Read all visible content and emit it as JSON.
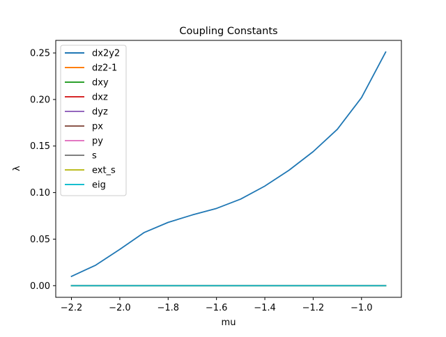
{
  "chart_data": {
    "type": "line",
    "title": "Coupling Constants",
    "xlabel": "mu",
    "ylabel": "λ",
    "xlim": [
      -2.265,
      -0.835
    ],
    "ylim": [
      -0.0125,
      0.2635
    ],
    "xticks": [
      -2.2,
      -2.0,
      -1.8,
      -1.6,
      -1.4,
      -1.2,
      -1.0
    ],
    "xtick_labels": [
      "−2.2",
      "−2.0",
      "−1.8",
      "−1.6",
      "−1.4",
      "−1.2",
      "−1.0"
    ],
    "yticks": [
      0.0,
      0.05,
      0.1,
      0.15,
      0.2,
      0.25
    ],
    "ytick_labels": [
      "0.00",
      "0.05",
      "0.10",
      "0.15",
      "0.20",
      "0.25"
    ],
    "grid": false,
    "legend_position": "upper-left",
    "x": [
      -2.2,
      -2.1,
      -2.0,
      -1.9,
      -1.8,
      -1.7,
      -1.6,
      -1.5,
      -1.4,
      -1.3,
      -1.2,
      -1.1,
      -1.0,
      -0.9
    ],
    "series": [
      {
        "name": "dx2y2",
        "color": "#1f77b4",
        "values": [
          0.01,
          0.022,
          0.039,
          0.057,
          0.068,
          0.076,
          0.083,
          0.093,
          0.107,
          0.124,
          0.144,
          0.168,
          0.202,
          0.251
        ]
      },
      {
        "name": "dz2-1",
        "color": "#ff7f0e",
        "values": [
          0,
          0,
          0,
          0,
          0,
          0,
          0,
          0,
          0,
          0,
          0,
          0,
          0,
          0
        ]
      },
      {
        "name": "dxy",
        "color": "#2ca02c",
        "values": [
          0,
          0,
          0,
          0,
          0,
          0,
          0,
          0,
          0,
          0,
          0,
          0,
          0,
          0
        ]
      },
      {
        "name": "dxz",
        "color": "#d62728",
        "values": [
          0,
          0,
          0,
          0,
          0,
          0,
          0,
          0,
          0,
          0,
          0,
          0,
          0,
          0
        ]
      },
      {
        "name": "dyz",
        "color": "#9467bd",
        "values": [
          0,
          0,
          0,
          0,
          0,
          0,
          0,
          0,
          0,
          0,
          0,
          0,
          0,
          0
        ]
      },
      {
        "name": "px",
        "color": "#8c564b",
        "values": [
          0,
          0,
          0,
          0,
          0,
          0,
          0,
          0,
          0,
          0,
          0,
          0,
          0,
          0
        ]
      },
      {
        "name": "py",
        "color": "#e377c2",
        "values": [
          0,
          0,
          0,
          0,
          0,
          0,
          0,
          0,
          0,
          0,
          0,
          0,
          0,
          0
        ]
      },
      {
        "name": "s",
        "color": "#7f7f7f",
        "values": [
          0,
          0,
          0,
          0,
          0,
          0,
          0,
          0,
          0,
          0,
          0,
          0,
          0,
          0
        ]
      },
      {
        "name": "ext_s",
        "color": "#bcbd22",
        "values": [
          0,
          0,
          0,
          0,
          0,
          0,
          0,
          0,
          0,
          0,
          0,
          0,
          0,
          0
        ]
      },
      {
        "name": "eig",
        "color": "#17becf",
        "values": [
          0,
          0,
          0,
          0,
          0,
          0,
          0,
          0,
          0,
          0,
          0,
          0,
          0,
          0
        ]
      }
    ]
  }
}
